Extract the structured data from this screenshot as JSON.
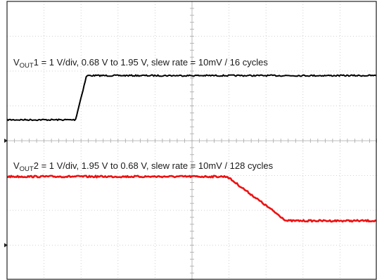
{
  "chart_data": {
    "type": "line",
    "title": "",
    "xlabel": "",
    "ylabel": "",
    "grid": true,
    "grid_divisions": {
      "x": 10,
      "y": 8
    },
    "x_units": "div",
    "xlim": [
      0,
      10
    ],
    "series": [
      {
        "label_prefix": "V",
        "label_sub": "OUT",
        "label_rest": "1 = 1 V/div, 0.68 V to 1.95 V, slew rate = 10mV / 16 cycles",
        "color": "#000000",
        "volts_per_div": 1,
        "start_v": 0.68,
        "end_v": 1.95,
        "ramp_start_div": 1.85,
        "ramp_end_div": 2.15,
        "noise": 0.02
      },
      {
        "label_prefix": "V",
        "label_sub": "OUT",
        "label_rest": "2 = 1 V/div, 1.95 V to 0.68 V, slew rate = 10mV / 128 cycles",
        "color": "#ee1111",
        "volts_per_div": 1,
        "start_v": 1.95,
        "end_v": 0.68,
        "ramp_start_div": 5.95,
        "ramp_end_div": 7.55,
        "noise": 0.025
      }
    ]
  }
}
